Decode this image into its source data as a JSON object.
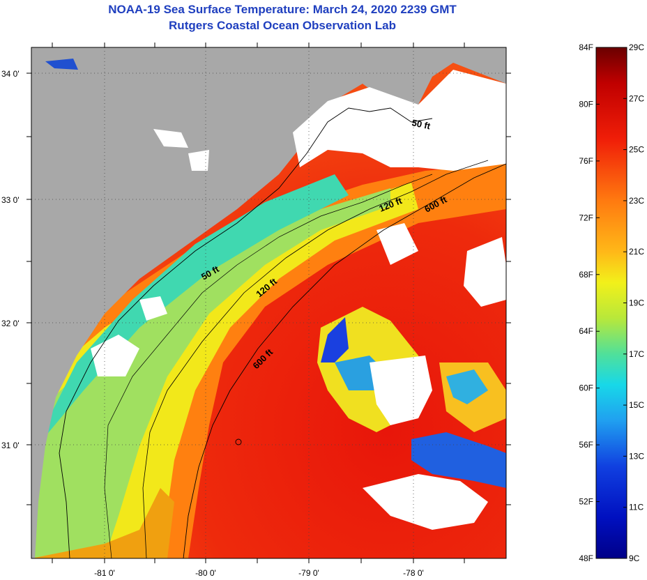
{
  "title_line1": "NOAA-19 Sea Surface Temperature:  March 24, 2020 2239 GMT",
  "title_line2": "Rutgers Coastal Ocean Observation Lab",
  "map": {
    "lon_labels": [
      "-81 0'",
      "-80 0'",
      "-79 0'",
      "-78 0'"
    ],
    "lat_labels": [
      "34 0'",
      "33 0'",
      "32 0'",
      "31 0'"
    ],
    "contour_labels": [
      "50 ft",
      "120 ft",
      "600 ft",
      "50 ft",
      "120 ft",
      "600 ft"
    ]
  },
  "colorbar": {
    "fahrenheit_labels": [
      "84F",
      "80F",
      "76F",
      "72F",
      "68F",
      "64F",
      "60F",
      "56F",
      "52F",
      "48F"
    ],
    "celsius_labels": [
      "29C",
      "27C",
      "25C",
      "23C",
      "21C",
      "19C",
      "17C",
      "15C",
      "13C",
      "11C",
      "9C"
    ],
    "colors": {
      "high": "#7a0000",
      "red": "#e81a0a",
      "orange": "#ff7a10",
      "yellow": "#f2f01a",
      "green": "#6fe080",
      "cyan": "#18d8e8",
      "blue": "#1040e0",
      "low": "#000090"
    }
  },
  "colors": {
    "land": "#a8a8a8",
    "cloud": "#ffffff",
    "title": "#1f3fbf"
  }
}
